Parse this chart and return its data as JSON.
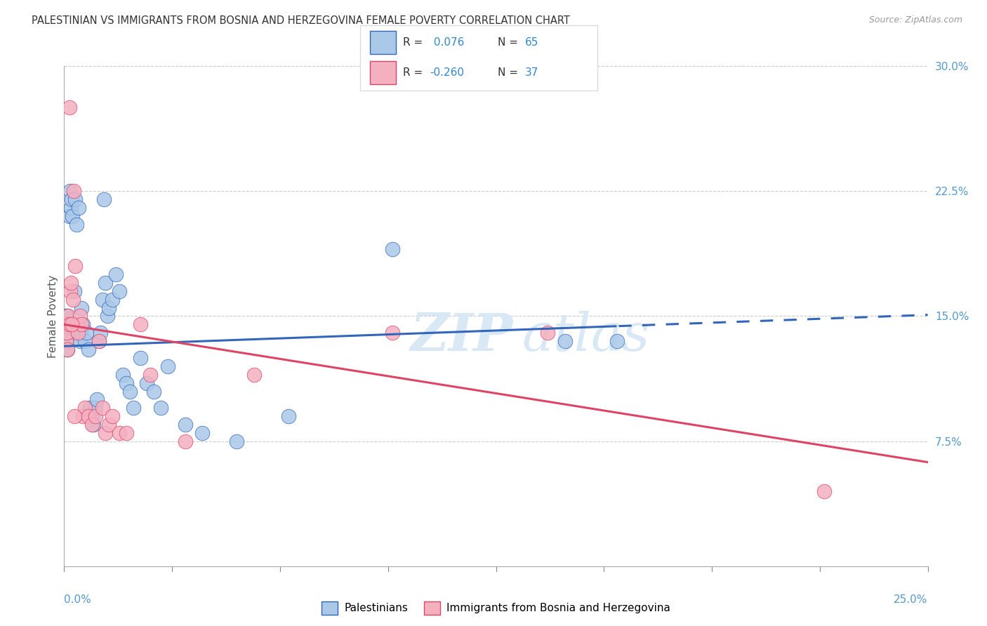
{
  "title": "PALESTINIAN VS IMMIGRANTS FROM BOSNIA AND HERZEGOVINA FEMALE POVERTY CORRELATION CHART",
  "source": "Source: ZipAtlas.com",
  "ylabel": "Female Poverty",
  "ytick_values": [
    7.5,
    15.0,
    22.5,
    30.0
  ],
  "xmin": 0.0,
  "xmax": 25.0,
  "ymin": 0.0,
  "ymax": 30.0,
  "label1": "Palestinians",
  "label2": "Immigrants from Bosnia and Herzegovina",
  "color1": "#aac8e8",
  "color2": "#f5b0c0",
  "line1_color": "#3366bb",
  "line2_color": "#dd4466",
  "watermark_zip": "ZIP",
  "watermark_atlas": "atlas",
  "palestinians_x": [
    0.02,
    0.03,
    0.04,
    0.05,
    0.06,
    0.07,
    0.08,
    0.09,
    0.1,
    0.12,
    0.14,
    0.16,
    0.18,
    0.2,
    0.22,
    0.24,
    0.26,
    0.28,
    0.3,
    0.32,
    0.35,
    0.38,
    0.4,
    0.42,
    0.45,
    0.48,
    0.5,
    0.55,
    0.6,
    0.65,
    0.7,
    0.75,
    0.8,
    0.85,
    0.9,
    0.95,
    1.0,
    1.05,
    1.1,
    1.15,
    1.2,
    1.25,
    1.3,
    1.4,
    1.5,
    1.6,
    1.7,
    1.8,
    1.9,
    2.0,
    2.2,
    2.4,
    2.6,
    2.8,
    3.0,
    3.5,
    4.0,
    5.0,
    6.5,
    9.5,
    14.5,
    16.0,
    0.03,
    0.05,
    0.07
  ],
  "palestinians_y": [
    13.5,
    14.0,
    14.5,
    15.0,
    14.0,
    13.5,
    14.0,
    13.0,
    15.0,
    14.5,
    14.0,
    21.0,
    22.5,
    21.5,
    22.0,
    21.0,
    14.5,
    14.0,
    16.5,
    22.0,
    20.5,
    14.5,
    14.0,
    21.5,
    13.5,
    14.0,
    15.5,
    14.5,
    13.5,
    14.0,
    13.0,
    9.5,
    9.0,
    8.5,
    9.5,
    10.0,
    13.5,
    14.0,
    16.0,
    22.0,
    17.0,
    15.0,
    15.5,
    16.0,
    17.5,
    16.5,
    11.5,
    11.0,
    10.5,
    9.5,
    12.5,
    11.0,
    10.5,
    9.5,
    12.0,
    8.5,
    8.0,
    7.5,
    9.0,
    19.0,
    13.5,
    13.5,
    14.5,
    15.0,
    13.0
  ],
  "bosnia_x": [
    0.03,
    0.05,
    0.07,
    0.09,
    0.12,
    0.15,
    0.18,
    0.2,
    0.25,
    0.28,
    0.32,
    0.35,
    0.4,
    0.45,
    0.5,
    0.55,
    0.6,
    0.7,
    0.8,
    0.9,
    1.0,
    1.1,
    1.2,
    1.3,
    1.4,
    1.6,
    1.8,
    2.2,
    2.5,
    3.5,
    5.5,
    9.5,
    14.0,
    0.15,
    0.22,
    0.3,
    22.0
  ],
  "bosnia_y": [
    14.5,
    13.5,
    14.0,
    13.0,
    15.0,
    14.5,
    16.5,
    17.0,
    16.0,
    22.5,
    18.0,
    14.5,
    14.0,
    15.0,
    14.5,
    9.0,
    9.5,
    9.0,
    8.5,
    9.0,
    13.5,
    9.5,
    8.0,
    8.5,
    9.0,
    8.0,
    8.0,
    14.5,
    11.5,
    7.5,
    11.5,
    14.0,
    14.0,
    27.5,
    14.5,
    9.0,
    4.5
  ]
}
